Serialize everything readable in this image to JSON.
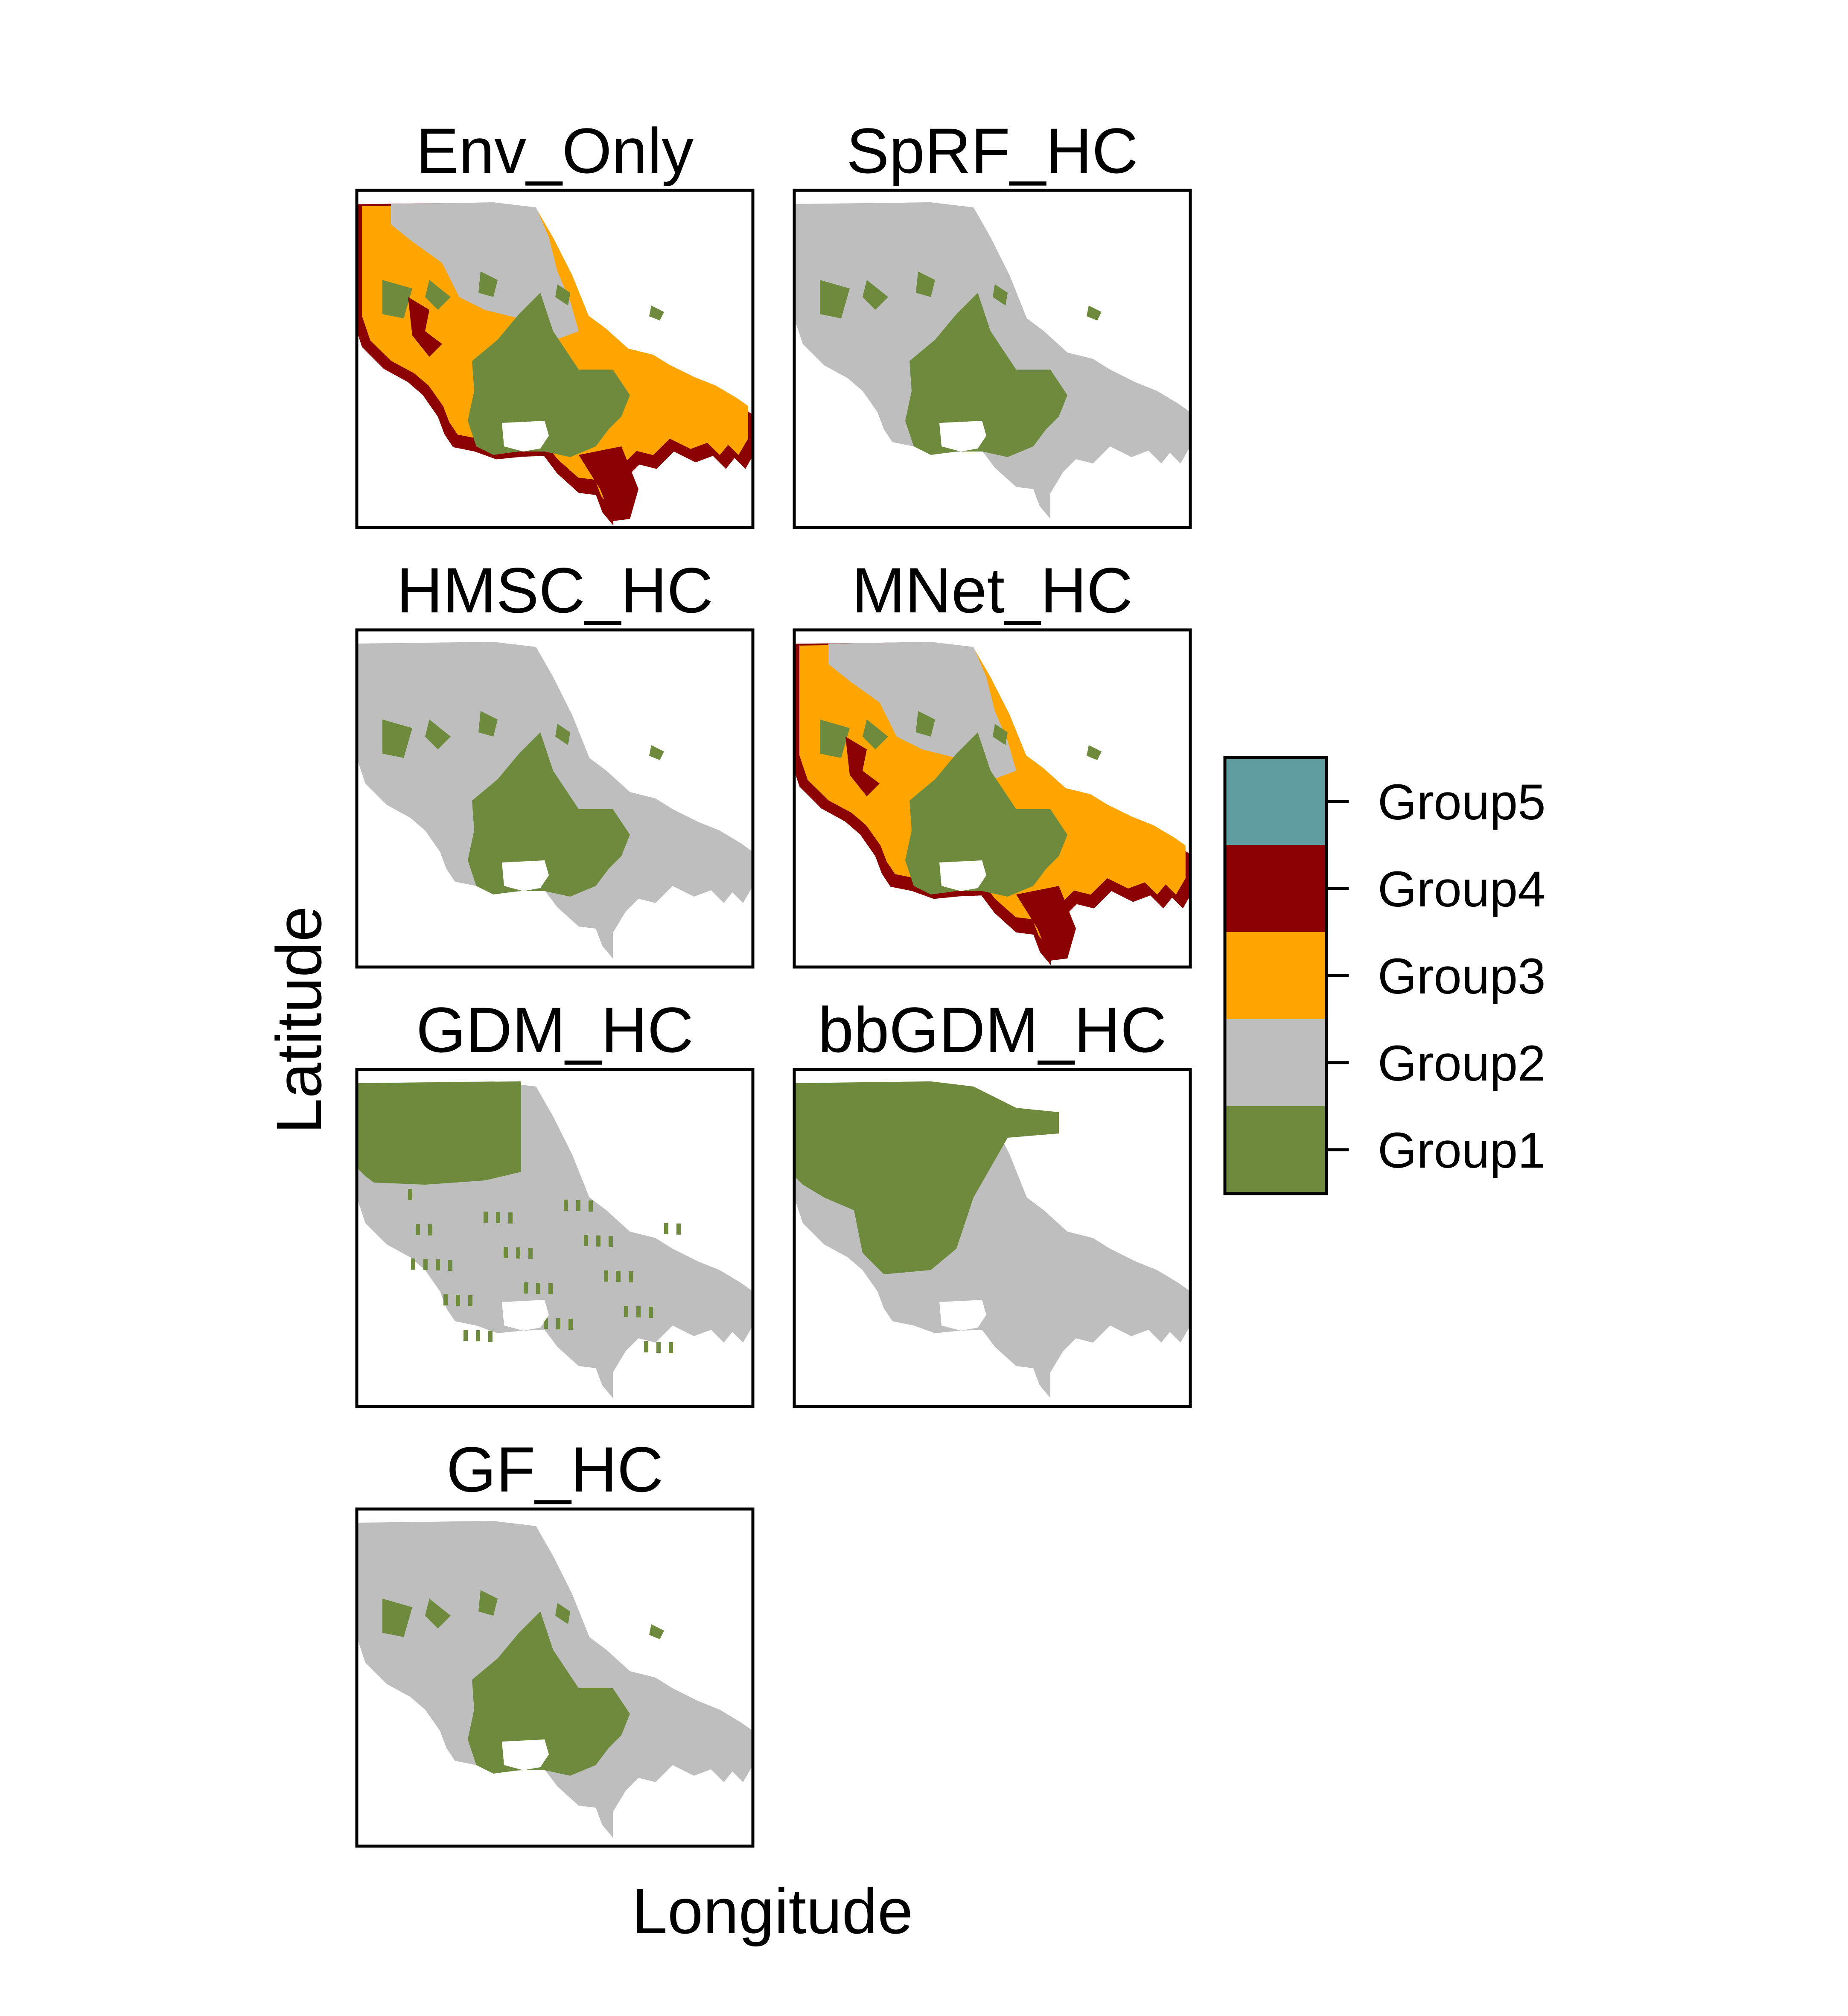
{
  "figure": {
    "x_label": "Longitude",
    "y_label": "Latitude"
  },
  "colors": {
    "Group1": "#6E8B3D",
    "Group2": "#BEBEBE",
    "Group3": "#FFA500",
    "Group4": "#8B0000",
    "Group5": "#5F9EA0",
    "frame": "#000000"
  },
  "legend": {
    "placement": "right",
    "entries": [
      "Group5",
      "Group4",
      "Group3",
      "Group2",
      "Group1"
    ]
  },
  "chart_data": {
    "type": "map",
    "panels": [
      {
        "title": "Env_Only",
        "groups_shown": [
          "Group1",
          "Group2",
          "Group3",
          "Group4"
        ]
      },
      {
        "title": "SpRF_HC",
        "groups_shown": [
          "Group1",
          "Group2"
        ]
      },
      {
        "title": "HMSC_HC",
        "groups_shown": [
          "Group1",
          "Group2"
        ]
      },
      {
        "title": "MNet_HC",
        "groups_shown": [
          "Group1",
          "Group2",
          "Group3",
          "Group4"
        ]
      },
      {
        "title": "GDM_HC",
        "groups_shown": [
          "Group1",
          "Group2"
        ]
      },
      {
        "title": "bbGDM_HC",
        "groups_shown": [
          "Group1",
          "Group2"
        ]
      },
      {
        "title": "GF_HC",
        "groups_shown": [
          "Group1",
          "Group2"
        ]
      }
    ]
  }
}
